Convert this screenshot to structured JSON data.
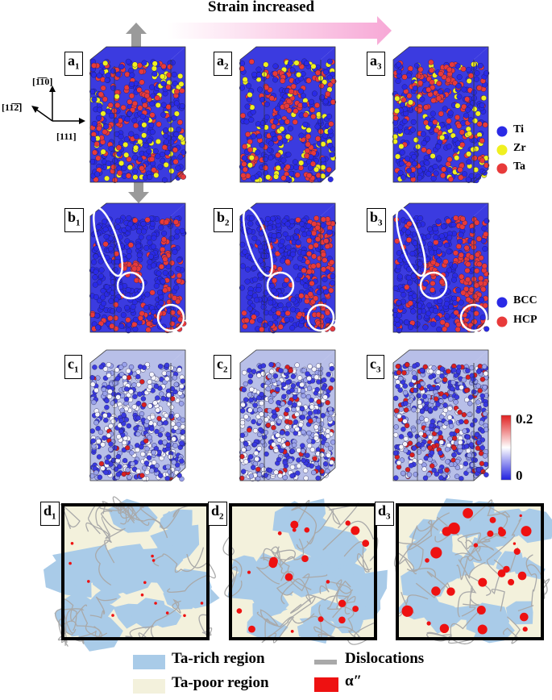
{
  "header": {
    "title": "Strain increased"
  },
  "panels": {
    "a": {
      "letter": "a",
      "subs": [
        "1",
        "2",
        "3"
      ]
    },
    "b": {
      "letter": "b",
      "subs": [
        "1",
        "2",
        "3"
      ]
    },
    "c": {
      "letter": "c",
      "subs": [
        "1",
        "2",
        "3"
      ]
    },
    "d": {
      "letter": "d",
      "subs": [
        "1",
        "2",
        "3"
      ]
    }
  },
  "axes": {
    "up": "[1̅1̅0]",
    "left": "[11̅2̅]",
    "right": "[111]"
  },
  "axes_plain": {
    "up": "[110]",
    "left": "[112]",
    "right": "[111]"
  },
  "legend_elements": [
    {
      "label": "Ti",
      "color": "#2a2ae6"
    },
    {
      "label": "Zr",
      "color": "#f0f020"
    },
    {
      "label": "Ta",
      "color": "#e83a3a"
    }
  ],
  "legend_structure": [
    {
      "label": "BCC",
      "color": "#2a2ae6"
    },
    {
      "label": "HCP",
      "color": "#e83a3a"
    }
  ],
  "colorbar": {
    "max": "0.2",
    "min": "0",
    "colors": [
      "#2020e0",
      "#ffffff",
      "#e02020"
    ]
  },
  "bottom_legend": [
    {
      "label": "Ta-rich region",
      "color": "#a9cbe8"
    },
    {
      "label": "Dislocations",
      "color": "#a9a9a9"
    },
    {
      "label": "Ta-poor region",
      "color": "#f3f1dc"
    },
    {
      "label": "α″",
      "color": "#ee1111"
    }
  ]
}
